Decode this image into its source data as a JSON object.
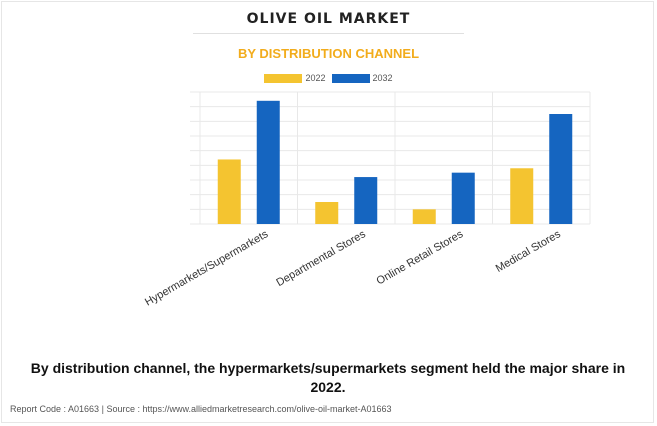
{
  "header": {
    "title": "OLIVE OIL MARKET",
    "subtitle": "BY DISTRIBUTION CHANNEL"
  },
  "caption": "By distribution channel, the hypermarkets/supermarkets segment held the major share in 2022.",
  "footer": {
    "report_code": "Report Code : A01663",
    "separator": "|",
    "source": "Source : https://www.alliedmarketresearch.com/olive-oil-market-A01663"
  },
  "chart_data": {
    "type": "bar",
    "title": "OLIVE OIL MARKET",
    "subtitle": "BY DISTRIBUTION CHANNEL",
    "xlabel": "",
    "ylabel": "",
    "categories": [
      "Hypermarkets/Supermarkets",
      "Departmental Stores",
      "Online Retail Stores",
      "Medical Stores"
    ],
    "series": [
      {
        "name": "2022",
        "color": "#f4c430",
        "values": [
          4.4,
          1.5,
          1.0,
          3.8
        ]
      },
      {
        "name": "2032",
        "color": "#1565c0",
        "values": [
          8.4,
          3.2,
          3.5,
          7.5
        ]
      }
    ],
    "ylim": [
      0,
      9
    ],
    "y_tick_step": 1,
    "y_tick_labels_shown": false,
    "grid": true,
    "legend_position": "top-center"
  }
}
